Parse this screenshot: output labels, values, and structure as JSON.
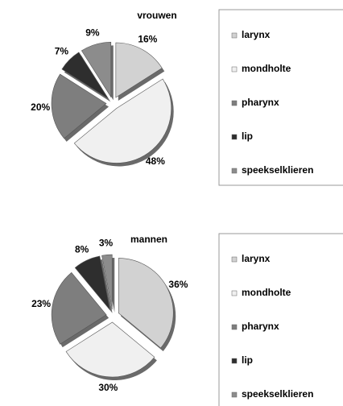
{
  "chart_data": [
    {
      "type": "pie",
      "title": "vrouwen",
      "categories": [
        "larynx",
        "mondholte",
        "pharynx",
        "lip",
        "speekselklieren"
      ],
      "values": [
        16,
        48,
        20,
        7,
        9
      ],
      "value_labels": [
        "16%",
        "48%",
        "20%",
        "7%",
        "9%"
      ],
      "colors": [
        "#d2d2d2",
        "#f0f0f0",
        "#7e7e7e",
        "#2e2e2e",
        "#8c8c8c"
      ]
    },
    {
      "type": "pie",
      "title": "mannen",
      "categories": [
        "larynx",
        "mondholte",
        "pharynx",
        "lip",
        "speekselklieren"
      ],
      "values": [
        36,
        30,
        23,
        8,
        3
      ],
      "value_labels": [
        "36%",
        "30%",
        "23%",
        "8%",
        "3%"
      ],
      "colors": [
        "#d2d2d2",
        "#f0f0f0",
        "#7e7e7e",
        "#2e2e2e",
        "#8c8c8c"
      ]
    }
  ]
}
